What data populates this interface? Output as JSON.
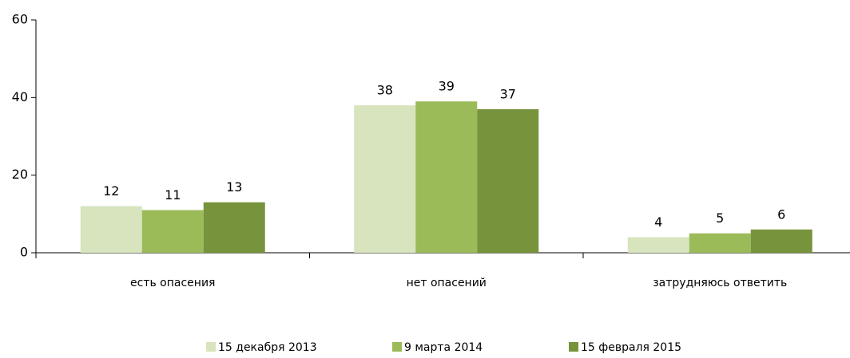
{
  "chart_data": {
    "type": "bar",
    "categories": [
      "есть опасения",
      "нет опасений",
      "затрудняюсь ответить"
    ],
    "series": [
      {
        "name": "15 декабря 2013",
        "color": "#d7e4bd",
        "values": [
          12,
          38,
          4
        ]
      },
      {
        "name": "9 марта 2014",
        "color": "#9bbb59",
        "values": [
          11,
          39,
          5
        ]
      },
      {
        "name": "15 февраля 2015",
        "color": "#77933c",
        "values": [
          13,
          37,
          6
        ]
      }
    ],
    "ylim": [
      0,
      60
    ],
    "yticks": [
      0,
      20,
      40,
      60
    ],
    "grid": false,
    "legend": "bottom",
    "data_labels": true
  }
}
